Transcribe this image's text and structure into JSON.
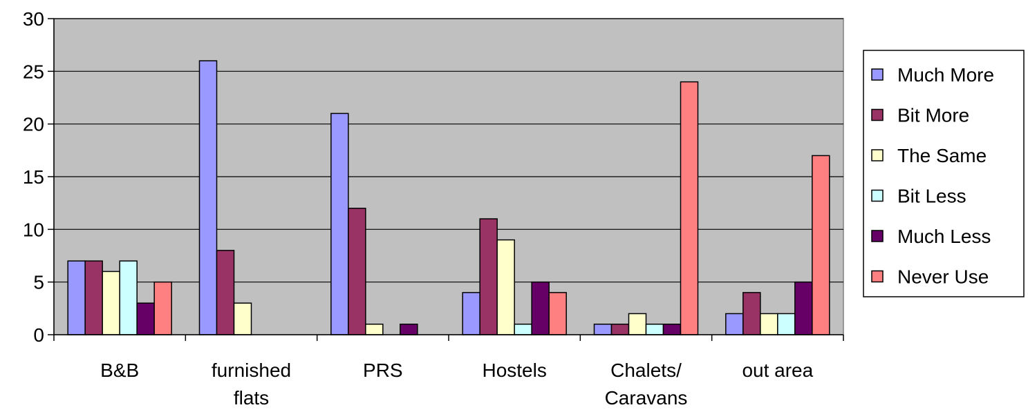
{
  "chart_data": {
    "type": "bar",
    "categories": [
      [
        "B&B"
      ],
      [
        "furnished",
        "flats"
      ],
      [
        "PRS"
      ],
      [
        "Hostels"
      ],
      [
        "Chalets/",
        "Caravans"
      ],
      [
        "out area"
      ]
    ],
    "series": [
      {
        "name": "Much More",
        "color": "#9999FF",
        "values": [
          7,
          26,
          21,
          4,
          1,
          2
        ]
      },
      {
        "name": "Bit More",
        "color": "#993366",
        "values": [
          7,
          8,
          12,
          11,
          1,
          4
        ]
      },
      {
        "name": "The Same",
        "color": "#FFFFCC",
        "values": [
          6,
          3,
          1,
          9,
          2,
          2
        ]
      },
      {
        "name": "Bit Less",
        "color": "#CCFFFF",
        "values": [
          7,
          0,
          0,
          1,
          1,
          2
        ]
      },
      {
        "name": "Much Less",
        "color": "#660066",
        "values": [
          3,
          0,
          1,
          5,
          1,
          5
        ]
      },
      {
        "name": "Never Use",
        "color": "#FF8080",
        "values": [
          5,
          0,
          0,
          4,
          24,
          17
        ]
      }
    ],
    "yticks": [
      0,
      5,
      10,
      15,
      20,
      25,
      30
    ],
    "ylim": [
      0,
      30
    ],
    "grid": true,
    "plot_background": "#C0C0C0",
    "legend_position": "right"
  }
}
